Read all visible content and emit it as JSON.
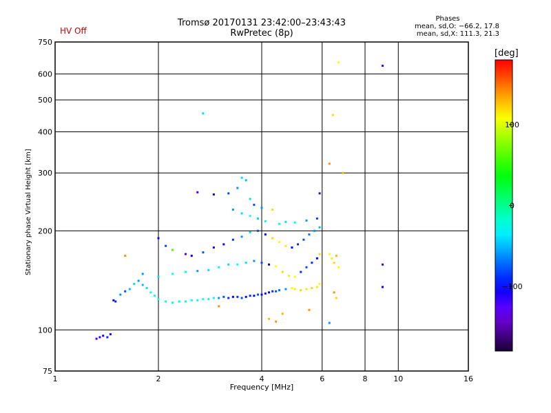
{
  "header": {
    "hv_status": "HV Off",
    "title_line1": "Tromsø 20170131 23:42:00–23:43:43",
    "title_line2": "RwPretec (8p)",
    "stats_heading": "Phases",
    "stats_line1": "mean, sd,O: −66.2, 17.8",
    "stats_line2": "mean, sd,X: 111.3, 21.3"
  },
  "colorbar": {
    "unit_label": "[deg]",
    "range": [
      -180,
      180
    ],
    "ticks": [
      {
        "value": 100,
        "label": "100"
      },
      {
        "value": 0,
        "label": "0"
      },
      {
        "value": -100,
        "label": "−100"
      }
    ]
  },
  "chart_data": {
    "type": "scatter",
    "title": "Tromsø 20170131 23:42:00–23:43:43",
    "subtitle": "RwPretec (8p)",
    "xlabel": "Frequency [MHz]",
    "ylabel": "Stationary phase Virtual Height [km]",
    "xscale": "log",
    "yscale": "log",
    "xlim": [
      1,
      16
    ],
    "ylim": [
      75,
      750
    ],
    "xticks": [
      1,
      2,
      4,
      6,
      8,
      10,
      16
    ],
    "xtick_labels": [
      "1",
      "2",
      "4",
      "6",
      "8",
      "10",
      "16"
    ],
    "yticks": [
      75,
      100,
      200,
      300,
      400,
      500,
      600,
      750
    ],
    "ytick_labels": [
      "75",
      "100",
      "200",
      "300",
      "400",
      "500",
      "600",
      "750"
    ],
    "grid": true,
    "color_scale": "phase in degrees",
    "series": [
      {
        "points": [
          [
            1.32,
            94,
            -120
          ],
          [
            1.35,
            95,
            -110
          ],
          [
            1.38,
            96,
            -100
          ],
          [
            1.42,
            95,
            -90
          ],
          [
            1.45,
            97,
            -110
          ],
          [
            1.48,
            123,
            -100
          ],
          [
            1.5,
            122,
            -90
          ],
          [
            1.55,
            128,
            -60
          ],
          [
            1.6,
            131,
            -80
          ],
          [
            1.65,
            133,
            -50
          ],
          [
            1.7,
            138,
            -40
          ],
          [
            1.75,
            141,
            -60
          ],
          [
            1.8,
            137,
            -50
          ],
          [
            1.85,
            134,
            -40
          ],
          [
            1.9,
            130,
            -30
          ],
          [
            1.95,
            127,
            -20
          ],
          [
            2.0,
            124,
            -20
          ],
          [
            2.1,
            122,
            -20
          ],
          [
            2.2,
            121,
            -20
          ],
          [
            2.3,
            122,
            -20
          ],
          [
            2.4,
            122,
            -20
          ],
          [
            2.5,
            123,
            -30
          ],
          [
            2.6,
            123,
            -20
          ],
          [
            2.7,
            124,
            -30
          ],
          [
            2.8,
            124,
            -20
          ],
          [
            2.9,
            125,
            -30
          ],
          [
            3.0,
            125,
            -60
          ],
          [
            3.1,
            126,
            -80
          ],
          [
            3.2,
            125,
            -90
          ],
          [
            3.3,
            126,
            -100
          ],
          [
            3.4,
            126,
            -90
          ],
          [
            3.5,
            125,
            -80
          ],
          [
            3.6,
            126,
            -100
          ],
          [
            3.7,
            127,
            -90
          ],
          [
            3.8,
            127,
            -100
          ],
          [
            3.9,
            128,
            -80
          ],
          [
            4.0,
            128,
            -100
          ],
          [
            4.1,
            129,
            -110
          ],
          [
            4.2,
            130,
            -100
          ],
          [
            4.3,
            131,
            -90
          ],
          [
            4.4,
            131,
            -80
          ],
          [
            4.5,
            132,
            -70
          ],
          [
            4.7,
            133,
            -60
          ],
          [
            4.9,
            134,
            110
          ],
          [
            5.0,
            133,
            115
          ],
          [
            5.2,
            132,
            120
          ],
          [
            5.4,
            133,
            118
          ],
          [
            5.6,
            134,
            120
          ],
          [
            5.8,
            135,
            115
          ],
          [
            5.9,
            138,
            110
          ],
          [
            1.8,
            148,
            -60
          ],
          [
            2.0,
            145,
            -40
          ],
          [
            2.2,
            148,
            -30
          ],
          [
            2.4,
            150,
            -20
          ],
          [
            2.6,
            151,
            -60
          ],
          [
            2.8,
            152,
            -40
          ],
          [
            3.0,
            155,
            -20
          ],
          [
            3.2,
            158,
            -40
          ],
          [
            3.4,
            158,
            -30
          ],
          [
            3.6,
            160,
            -40
          ],
          [
            3.8,
            162,
            -60
          ],
          [
            4.0,
            160,
            -80
          ],
          [
            4.2,
            158,
            -100
          ],
          [
            4.4,
            156,
            110
          ],
          [
            4.6,
            150,
            120
          ],
          [
            4.8,
            146,
            115
          ],
          [
            5.0,
            145,
            110
          ],
          [
            5.2,
            150,
            -90
          ],
          [
            5.4,
            155,
            -80
          ],
          [
            5.6,
            160,
            -90
          ],
          [
            5.8,
            165,
            -100
          ],
          [
            5.9,
            170,
            120
          ],
          [
            2.0,
            190,
            -100
          ],
          [
            2.1,
            180,
            -80
          ],
          [
            2.2,
            175,
            60
          ],
          [
            2.4,
            170,
            -120
          ],
          [
            2.5,
            168,
            -100
          ],
          [
            2.7,
            172,
            -80
          ],
          [
            2.9,
            178,
            -110
          ],
          [
            3.1,
            182,
            -100
          ],
          [
            3.3,
            188,
            -90
          ],
          [
            3.5,
            192,
            -60
          ],
          [
            3.7,
            198,
            -40
          ],
          [
            3.9,
            200,
            -80
          ],
          [
            4.1,
            195,
            -100
          ],
          [
            4.3,
            190,
            120
          ],
          [
            4.5,
            185,
            110
          ],
          [
            4.7,
            180,
            115
          ],
          [
            4.9,
            178,
            -100
          ],
          [
            5.1,
            182,
            -90
          ],
          [
            5.3,
            188,
            -80
          ],
          [
            5.5,
            195,
            -70
          ],
          [
            5.7,
            200,
            -60
          ],
          [
            5.9,
            205,
            -50
          ],
          [
            2.6,
            262,
            -120
          ],
          [
            2.9,
            258,
            -100
          ],
          [
            3.2,
            260,
            -80
          ],
          [
            3.4,
            270,
            -60
          ],
          [
            3.5,
            290,
            -40
          ],
          [
            3.6,
            285,
            -50
          ],
          [
            3.7,
            250,
            -40
          ],
          [
            3.8,
            240,
            -80
          ],
          [
            4.0,
            235,
            -60
          ],
          [
            4.3,
            232,
            120
          ],
          [
            3.3,
            232,
            -60
          ],
          [
            3.5,
            226,
            -40
          ],
          [
            3.7,
            222,
            -30
          ],
          [
            3.9,
            218,
            -40
          ],
          [
            4.1,
            214,
            -20
          ],
          [
            4.5,
            210,
            -30
          ],
          [
            4.7,
            213,
            -40
          ],
          [
            5.0,
            212,
            -30
          ],
          [
            5.4,
            215,
            -60
          ],
          [
            5.8,
            218,
            -80
          ],
          [
            5.9,
            260,
            -110
          ],
          [
            6.3,
            320,
            140
          ],
          [
            6.45,
            450,
            120
          ],
          [
            6.7,
            650,
            110
          ],
          [
            6.9,
            300,
            130
          ],
          [
            2.7,
            455,
            -40
          ],
          [
            9.0,
            635,
            -120
          ],
          [
            9.0,
            158,
            -120
          ],
          [
            9.0,
            135,
            -100
          ],
          [
            6.3,
            170,
            110
          ],
          [
            6.4,
            165,
            100
          ],
          [
            6.5,
            160,
            120
          ],
          [
            6.6,
            168,
            130
          ],
          [
            6.7,
            155,
            110
          ],
          [
            6.5,
            130,
            140
          ],
          [
            6.6,
            125,
            120
          ],
          [
            6.3,
            105,
            -60
          ],
          [
            4.4,
            106,
            140
          ],
          [
            4.6,
            112,
            130
          ],
          [
            5.5,
            115,
            140
          ],
          [
            1.6,
            168,
            140
          ],
          [
            4.2,
            108,
            130
          ],
          [
            3.0,
            118,
            140
          ]
        ]
      }
    ]
  }
}
